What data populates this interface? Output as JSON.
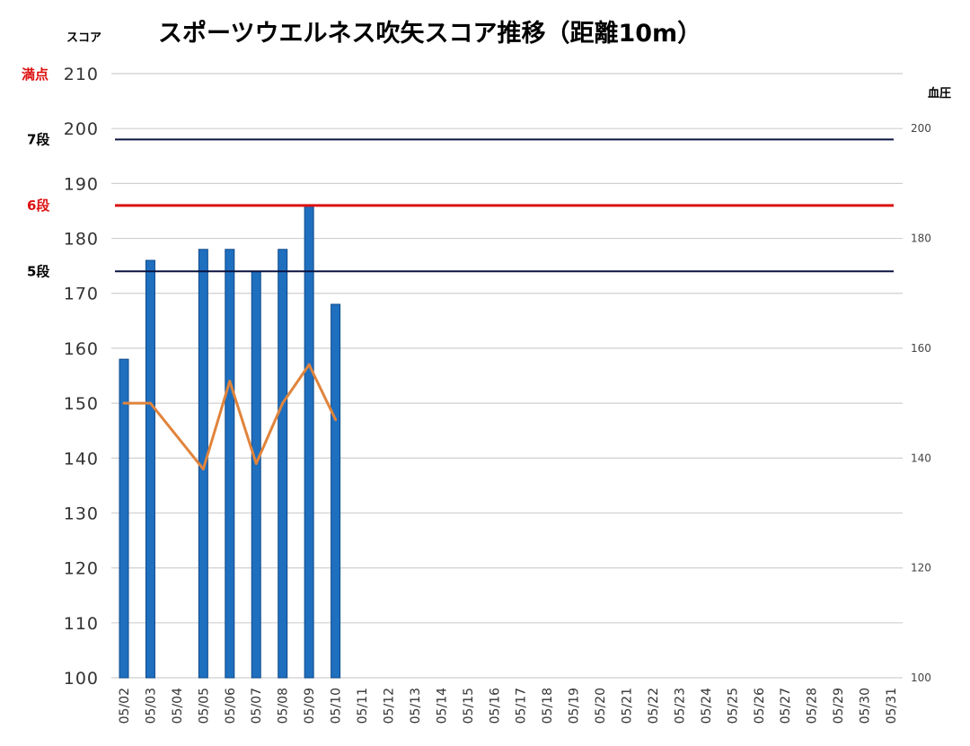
{
  "chart_data": {
    "type": "bar",
    "title": "スポーツウエルネス吹矢スコア推移（距離10m）",
    "ylabel": "スコア",
    "y2label": "血圧",
    "ylim": [
      100,
      210
    ],
    "yticks": [
      100,
      110,
      120,
      130,
      140,
      150,
      160,
      170,
      180,
      190,
      200,
      210
    ],
    "y2lim": [
      100,
      210
    ],
    "y2ticks": [
      100,
      120,
      140,
      160,
      180,
      200
    ],
    "grid": true,
    "categories": [
      "05/02",
      "05/03",
      "05/04",
      "05/05",
      "05/06",
      "05/07",
      "05/08",
      "05/09",
      "05/10",
      "05/11",
      "05/12",
      "05/13",
      "05/14",
      "05/15",
      "05/16",
      "05/17",
      "05/18",
      "05/19",
      "05/20",
      "05/21",
      "05/22",
      "05/23",
      "05/24",
      "05/25",
      "05/26",
      "05/27",
      "05/28",
      "05/29",
      "05/30",
      "05/31"
    ],
    "series": [
      {
        "kind": "bar",
        "color": "#1f6fbf",
        "values": [
          158,
          176,
          null,
          178,
          178,
          174,
          178,
          186,
          168,
          null,
          null,
          null,
          null,
          null,
          null,
          null,
          null,
          null,
          null,
          null,
          null,
          null,
          null,
          null,
          null,
          null,
          null,
          null,
          null,
          null
        ]
      },
      {
        "kind": "line",
        "axis": "right",
        "color": "#e0843c",
        "values": [
          150,
          150,
          null,
          138,
          154,
          139,
          150,
          157,
          147,
          null,
          null,
          null,
          null,
          null,
          null,
          null,
          null,
          null,
          null,
          null,
          null,
          null,
          null,
          null,
          null,
          null,
          null,
          null,
          null,
          null
        ]
      }
    ],
    "reference_lines": [
      {
        "label": "満点",
        "value": 210,
        "color": "#dd1111",
        "line_color": "#cccccc"
      },
      {
        "label": "7段",
        "value": 198,
        "color": "#000000",
        "line_color": "#0a1440"
      },
      {
        "label": "6段",
        "value": 186,
        "color": "#dd1111",
        "line_color": "#dd1111"
      },
      {
        "label": "5段",
        "value": 174,
        "color": "#000000",
        "line_color": "#0a1440"
      }
    ]
  }
}
